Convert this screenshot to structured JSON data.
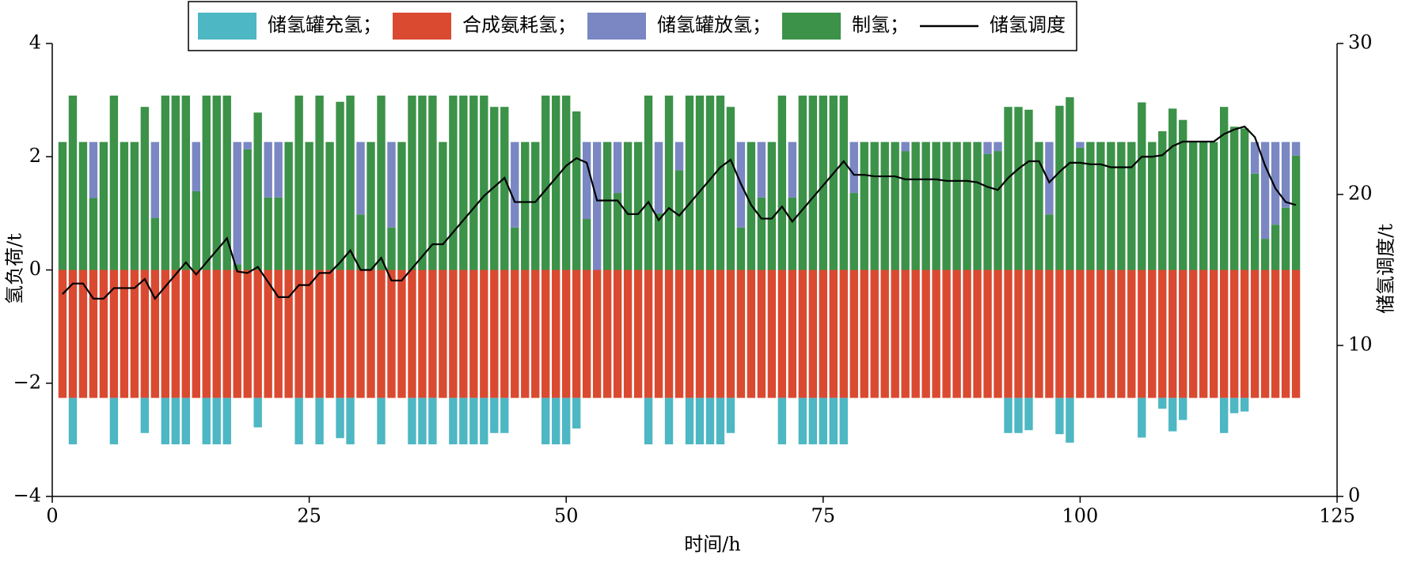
{
  "chart_data": {
    "type": "bar-line",
    "xlabel": "时间/h",
    "ylabel": "氢负荷/t",
    "y2label": "储氢调度/t",
    "xlim": [
      0,
      125
    ],
    "xticks": [
      0,
      25,
      50,
      75,
      100,
      125
    ],
    "ylim": [
      -4,
      4
    ],
    "yticks": [
      {
        "value": -4,
        "label": "−4"
      },
      {
        "value": -2,
        "label": "−2"
      },
      0,
      2,
      4
    ],
    "y2lim": [
      0,
      30
    ],
    "y2ticks": [
      0,
      10,
      20,
      30
    ],
    "x": [
      1,
      2,
      3,
      4,
      5,
      6,
      7,
      8,
      9,
      10,
      11,
      12,
      13,
      14,
      15,
      16,
      17,
      18,
      19,
      20,
      21,
      22,
      23,
      24,
      25,
      26,
      27,
      28,
      29,
      30,
      31,
      32,
      33,
      34,
      35,
      36,
      37,
      38,
      39,
      40,
      41,
      42,
      43,
      44,
      45,
      46,
      47,
      48,
      49,
      50,
      51,
      52,
      53,
      54,
      55,
      56,
      57,
      58,
      59,
      60,
      61,
      62,
      63,
      64,
      65,
      66,
      67,
      68,
      69,
      70,
      71,
      72,
      73,
      74,
      75,
      76,
      77,
      78,
      79,
      80,
      81,
      82,
      83,
      84,
      85,
      86,
      87,
      88,
      89,
      90,
      91,
      92,
      93,
      94,
      95,
      96,
      97,
      98,
      99,
      100,
      101,
      102,
      103,
      104,
      105,
      106,
      107,
      108,
      109,
      110,
      111,
      112,
      113,
      114,
      115,
      116,
      117,
      118,
      119,
      120,
      121
    ],
    "series": [
      {
        "name": "储氢罐充氢；",
        "color": "#4db7c3",
        "values": [
          0,
          -0.82,
          0,
          0,
          0,
          -0.82,
          0,
          0,
          -0.62,
          0,
          -0.82,
          -0.82,
          -0.82,
          0,
          -0.82,
          -0.82,
          -0.82,
          0,
          0,
          -0.52,
          0,
          0,
          0,
          -0.82,
          0,
          -0.82,
          0,
          -0.71,
          -0.82,
          0,
          0,
          -0.82,
          0,
          0,
          -0.82,
          -0.82,
          -0.82,
          0,
          -0.82,
          -0.82,
          -0.82,
          -0.82,
          -0.62,
          -0.62,
          0,
          0,
          0,
          -0.82,
          -0.82,
          -0.82,
          -0.54,
          0,
          0,
          0,
          0,
          0,
          0,
          -0.82,
          0,
          -0.82,
          0,
          -0.82,
          -0.82,
          -0.82,
          -0.82,
          -0.62,
          0,
          0,
          0,
          0,
          -0.82,
          0,
          -0.82,
          -0.82,
          -0.82,
          -0.82,
          -0.82,
          0,
          0,
          0,
          0,
          0,
          0,
          0,
          0,
          0,
          0,
          0,
          0,
          0,
          0,
          0,
          -0.62,
          -0.62,
          -0.57,
          0,
          0,
          -0.64,
          -0.79,
          0,
          0,
          0,
          0,
          0,
          0,
          -0.7,
          0,
          -0.19,
          -0.59,
          -0.39,
          0,
          0,
          0,
          -0.62,
          -0.27,
          -0.24,
          0,
          0,
          0,
          0,
          0
        ]
      },
      {
        "name": "合成氨耗氢；",
        "color": "#d94a31",
        "values": [
          -2.26,
          -2.26,
          -2.26,
          -2.26,
          -2.26,
          -2.26,
          -2.26,
          -2.26,
          -2.26,
          -2.26,
          -2.26,
          -2.26,
          -2.26,
          -2.26,
          -2.26,
          -2.26,
          -2.26,
          -2.26,
          -2.26,
          -2.26,
          -2.26,
          -2.26,
          -2.26,
          -2.26,
          -2.26,
          -2.26,
          -2.26,
          -2.26,
          -2.26,
          -2.26,
          -2.26,
          -2.26,
          -2.26,
          -2.26,
          -2.26,
          -2.26,
          -2.26,
          -2.26,
          -2.26,
          -2.26,
          -2.26,
          -2.26,
          -2.26,
          -2.26,
          -2.26,
          -2.26,
          -2.26,
          -2.26,
          -2.26,
          -2.26,
          -2.26,
          -2.26,
          -2.26,
          -2.26,
          -2.26,
          -2.26,
          -2.26,
          -2.26,
          -2.26,
          -2.26,
          -2.26,
          -2.26,
          -2.26,
          -2.26,
          -2.26,
          -2.26,
          -2.26,
          -2.26,
          -2.26,
          -2.26,
          -2.26,
          -2.26,
          -2.26,
          -2.26,
          -2.26,
          -2.26,
          -2.26,
          -2.26,
          -2.26,
          -2.26,
          -2.26,
          -2.26,
          -2.26,
          -2.26,
          -2.26,
          -2.26,
          -2.26,
          -2.26,
          -2.26,
          -2.26,
          -2.26,
          -2.26,
          -2.26,
          -2.26,
          -2.26,
          -2.26,
          -2.26,
          -2.26,
          -2.26,
          -2.26,
          -2.26,
          -2.26,
          -2.26,
          -2.26,
          -2.26,
          -2.26,
          -2.26,
          -2.26,
          -2.26,
          -2.26,
          -2.26,
          -2.26,
          -2.26,
          -2.26,
          -2.26,
          -2.26,
          -2.26,
          -2.26,
          -2.26,
          -2.26,
          -2.26
        ]
      },
      {
        "name": "储氢罐放氢；",
        "color": "#7a87c3",
        "values": [
          0,
          0,
          0,
          0.99,
          0,
          0,
          0,
          0,
          0,
          1.34,
          0,
          0,
          0,
          0.87,
          0,
          0,
          0,
          2.16,
          0.13,
          0,
          0.98,
          0.98,
          0,
          0,
          0,
          0,
          0,
          0,
          0,
          1.28,
          0,
          0,
          1.51,
          0,
          0,
          0,
          0,
          0,
          0,
          0,
          0,
          0,
          0,
          0,
          1.51,
          0,
          0,
          0,
          0,
          0,
          0,
          1.36,
          2.26,
          0,
          0.9,
          0,
          0,
          0,
          1.26,
          0,
          0.5,
          0,
          0,
          0,
          0,
          0,
          1.51,
          0,
          0.98,
          0,
          0,
          0.98,
          0,
          0,
          0,
          0,
          0,
          0.9,
          0,
          0,
          0,
          0,
          0.16,
          0,
          0,
          0,
          0,
          0,
          0,
          0,
          0.21,
          0.16,
          0,
          0,
          0,
          0,
          1.28,
          0,
          0,
          0.1,
          0,
          0,
          0,
          0,
          0,
          0,
          0,
          0,
          0,
          0,
          0,
          0,
          0,
          0,
          0,
          0,
          0.56,
          1.71,
          1.46,
          1.16,
          0.24
        ]
      },
      {
        "name": "制氢；",
        "color": "#3b9248",
        "values": [
          2.26,
          3.08,
          2.26,
          1.27,
          2.26,
          3.08,
          2.26,
          2.26,
          2.88,
          0.92,
          3.08,
          3.08,
          3.08,
          1.39,
          3.08,
          3.08,
          3.08,
          0.1,
          2.13,
          2.78,
          1.28,
          1.28,
          2.26,
          3.08,
          2.26,
          3.08,
          2.26,
          2.97,
          3.08,
          0.98,
          2.26,
          3.08,
          0.75,
          2.26,
          3.08,
          3.08,
          3.08,
          2.26,
          3.08,
          3.08,
          3.08,
          3.08,
          2.88,
          2.88,
          0.75,
          2.26,
          2.26,
          3.08,
          3.08,
          3.08,
          2.8,
          0.9,
          0,
          2.26,
          1.36,
          2.26,
          2.26,
          3.08,
          1.0,
          3.08,
          1.76,
          3.08,
          3.08,
          3.08,
          3.08,
          2.88,
          0.75,
          2.26,
          1.28,
          2.26,
          3.08,
          1.28,
          3.08,
          3.08,
          3.08,
          3.08,
          3.08,
          1.36,
          2.26,
          2.26,
          2.26,
          2.26,
          2.1,
          2.26,
          2.26,
          2.26,
          2.26,
          2.26,
          2.26,
          2.26,
          2.05,
          2.1,
          2.88,
          2.88,
          2.83,
          2.26,
          0.98,
          2.9,
          3.05,
          2.16,
          2.26,
          2.26,
          2.26,
          2.26,
          2.26,
          2.96,
          2.26,
          2.45,
          2.85,
          2.65,
          2.26,
          2.26,
          2.26,
          2.88,
          2.53,
          2.5,
          1.7,
          0.55,
          0.8,
          1.1,
          2.02
        ]
      },
      {
        "name": "储氢调度",
        "type": "line",
        "axis": "y2",
        "color": "#000000",
        "values": [
          13.4,
          14.1,
          14.1,
          13.1,
          13.1,
          13.8,
          13.8,
          13.8,
          14.4,
          13.1,
          13.9,
          14.7,
          15.5,
          14.7,
          15.5,
          16.3,
          17.1,
          14.9,
          14.8,
          15.2,
          14.2,
          13.2,
          13.2,
          14.0,
          14.0,
          14.8,
          14.8,
          15.5,
          16.3,
          15.0,
          15.0,
          15.8,
          14.3,
          14.3,
          15.1,
          15.9,
          16.7,
          16.7,
          17.5,
          18.3,
          19.1,
          19.9,
          20.5,
          21.1,
          19.5,
          19.5,
          19.5,
          20.3,
          21.1,
          21.9,
          22.4,
          22.1,
          19.6,
          19.6,
          19.6,
          18.7,
          18.7,
          19.5,
          18.3,
          19.1,
          18.6,
          19.4,
          20.2,
          21.0,
          21.8,
          22.3,
          20.7,
          19.3,
          18.4,
          18.4,
          19.2,
          18.2,
          19.0,
          19.8,
          20.6,
          21.4,
          22.2,
          21.3,
          21.3,
          21.2,
          21.2,
          21.2,
          21.0,
          21.0,
          21.0,
          21.0,
          20.9,
          20.9,
          20.9,
          20.8,
          20.5,
          20.3,
          21.1,
          21.7,
          22.2,
          22.2,
          20.8,
          21.5,
          22.1,
          22.1,
          22.0,
          22.0,
          21.8,
          21.8,
          21.8,
          22.5,
          22.5,
          22.6,
          23.2,
          23.5,
          23.5,
          23.5,
          23.5,
          24.0,
          24.3,
          24.5,
          23.8,
          21.9,
          20.4,
          19.5,
          19.3
        ]
      }
    ]
  }
}
